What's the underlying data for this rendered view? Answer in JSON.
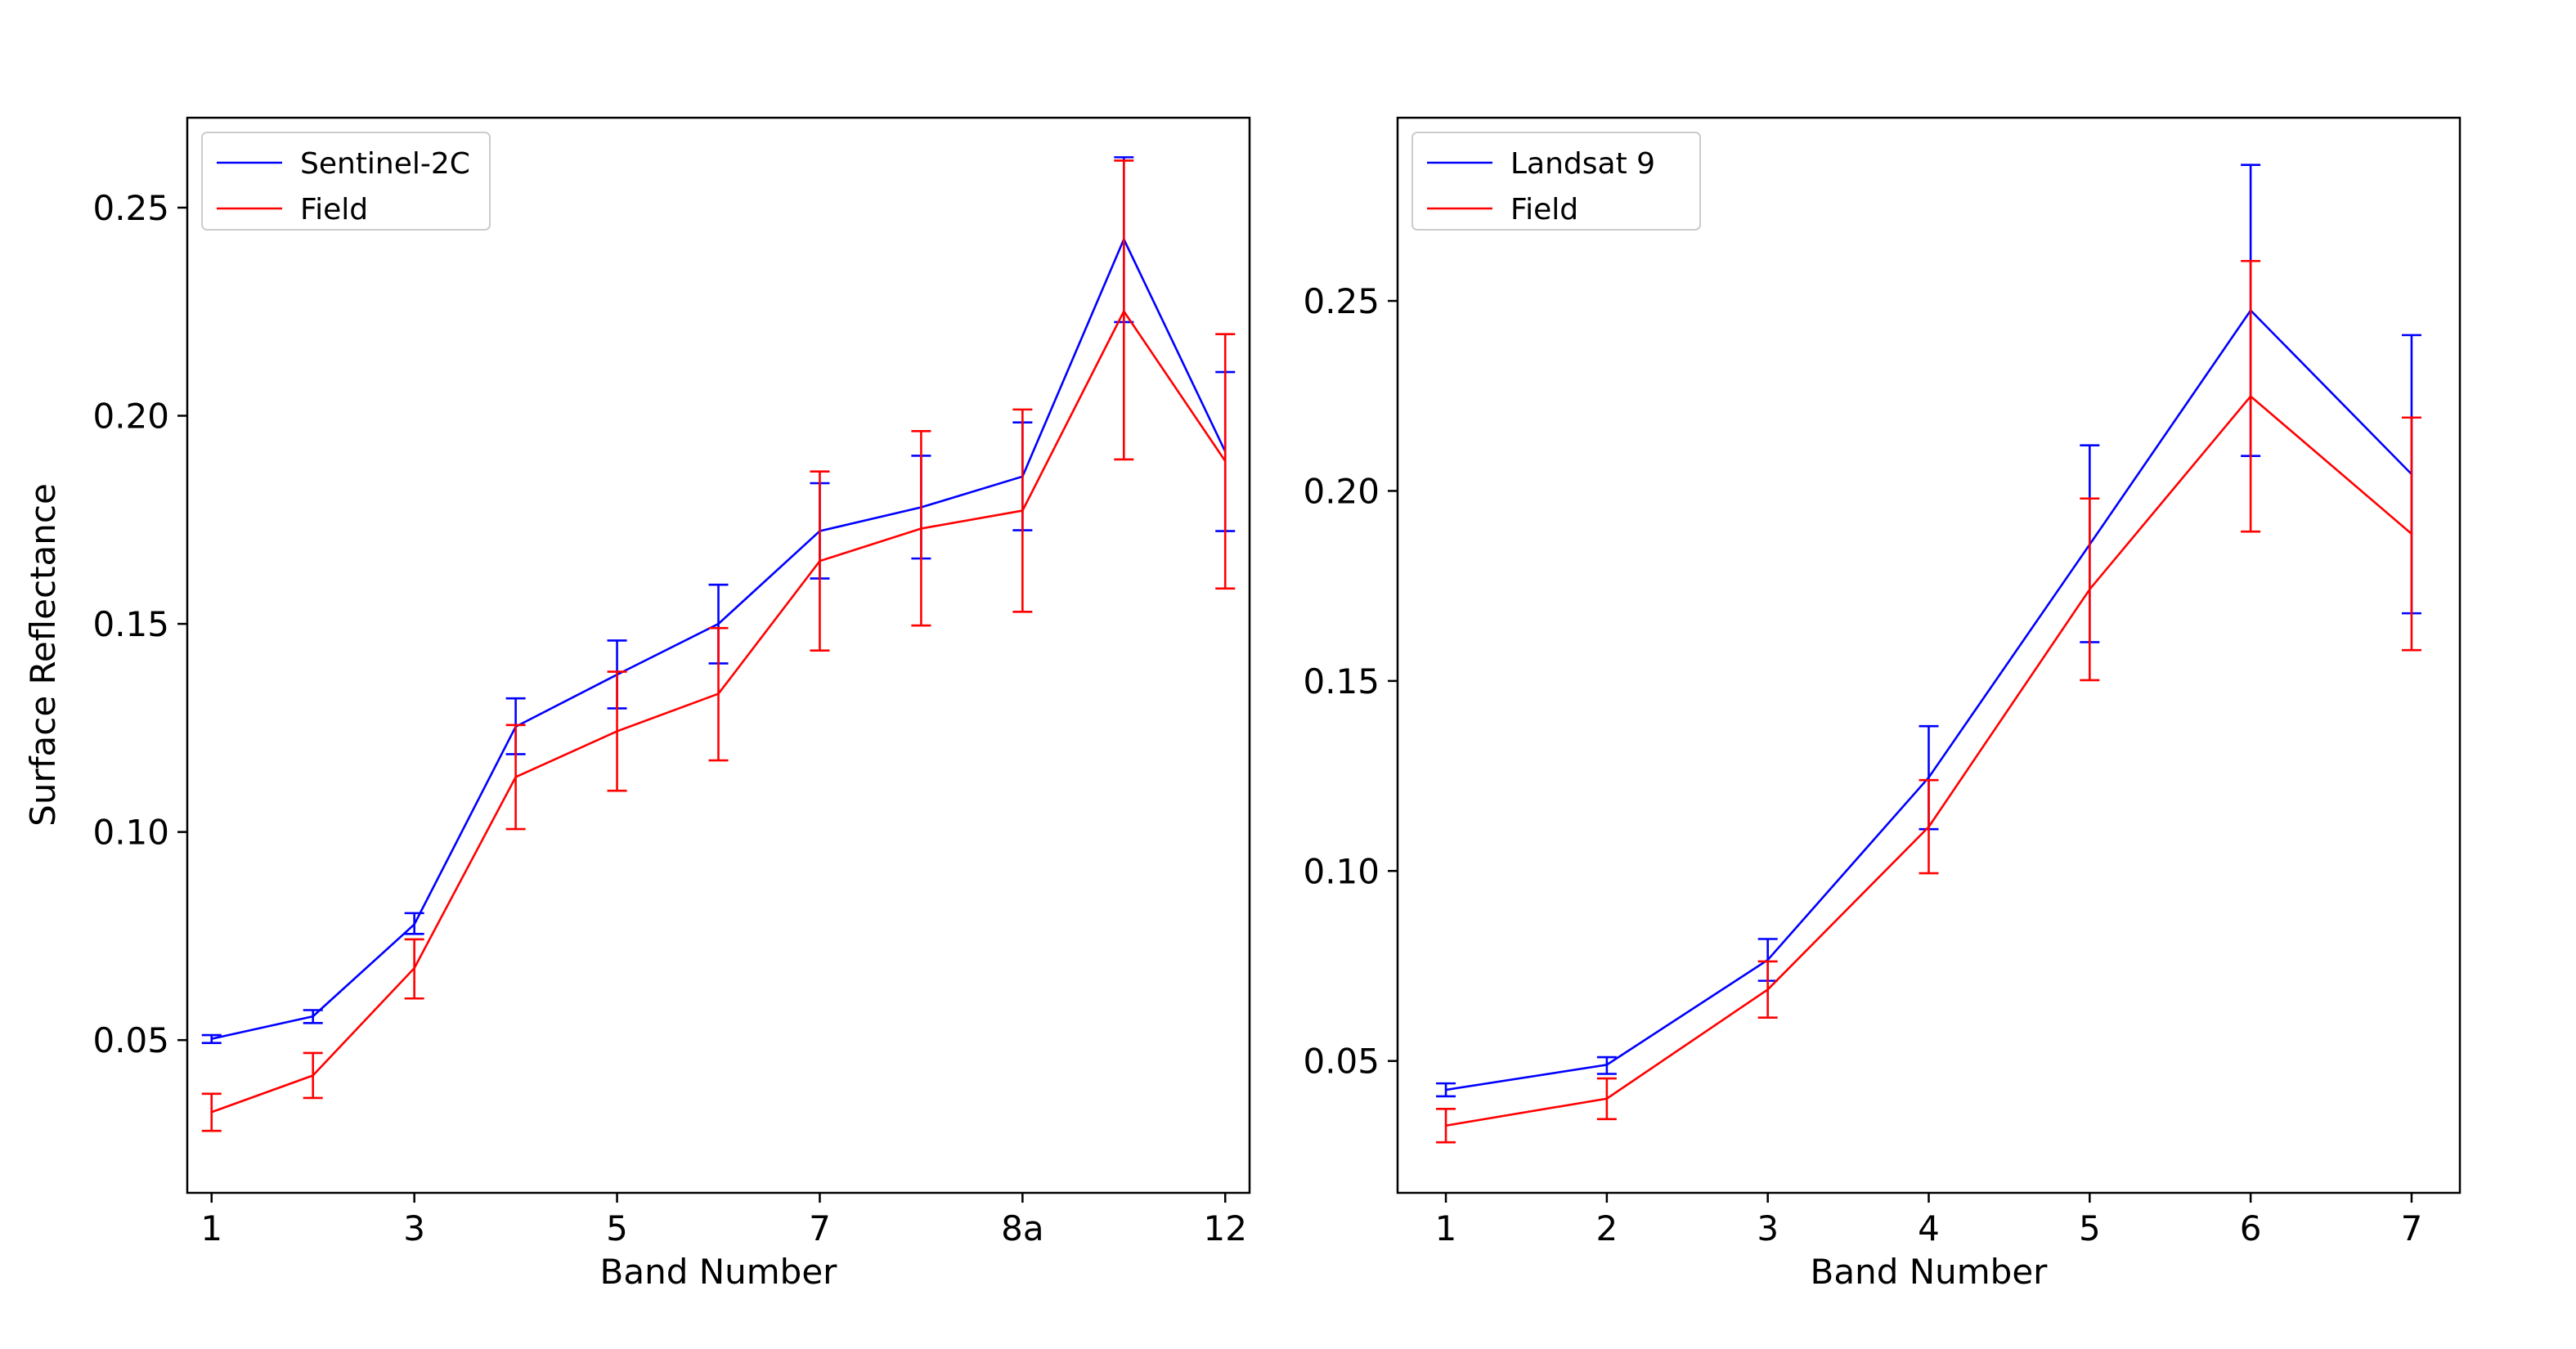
{
  "chart_data": [
    {
      "type": "line",
      "title": "",
      "xlabel": "Band Number",
      "ylabel": "Surface Reflectance",
      "x_tick_labels": [
        "1",
        "3",
        "5",
        "7",
        "8a",
        "12"
      ],
      "y_ticks": [
        0.05,
        0.1,
        0.15,
        0.2,
        0.25
      ],
      "y_tick_labels": [
        "0.05",
        "0.10",
        "0.15",
        "0.20",
        "0.25"
      ],
      "ylim": [
        0.0133,
        0.2716
      ],
      "xlim": [
        0.76,
        11.24
      ],
      "legend": "top-left",
      "x": [
        1,
        2,
        3,
        4,
        5,
        6,
        7,
        8,
        9,
        10,
        11
      ],
      "series": [
        {
          "name": "Sentinel-2C",
          "color": "#0000ff",
          "values": [
            0.0503,
            0.0557,
            0.0778,
            0.1253,
            0.1378,
            0.15,
            0.1723,
            0.178,
            0.1854,
            0.2424,
            0.1914
          ],
          "err_low": [
            0.0493,
            0.0541,
            0.0755,
            0.1187,
            0.1297,
            0.1405,
            0.1609,
            0.1657,
            0.1725,
            0.2225,
            0.1723
          ],
          "err_high": [
            0.0512,
            0.0572,
            0.0805,
            0.1321,
            0.146,
            0.1594,
            0.1838,
            0.1904,
            0.1984,
            0.2621,
            0.2105
          ]
        },
        {
          "name": "Field",
          "color": "#ff0000",
          "values": [
            0.0327,
            0.0415,
            0.0673,
            0.1132,
            0.1242,
            0.1332,
            0.1651,
            0.1729,
            0.1772,
            0.2251,
            0.1891
          ],
          "err_low": [
            0.0282,
            0.0361,
            0.06,
            0.1007,
            0.1099,
            0.1172,
            0.1436,
            0.1496,
            0.1529,
            0.1895,
            0.1585
          ],
          "err_high": [
            0.0371,
            0.0469,
            0.0742,
            0.1257,
            0.1385,
            0.149,
            0.1866,
            0.1963,
            0.2015,
            0.2613,
            0.2196
          ]
        }
      ]
    },
    {
      "type": "line",
      "title": "",
      "xlabel": "Band Number",
      "ylabel": "",
      "x_tick_labels": [
        "1",
        "2",
        "3",
        "4",
        "5",
        "6",
        "7"
      ],
      "y_ticks": [
        0.05,
        0.1,
        0.15,
        0.2,
        0.25
      ],
      "y_tick_labels": [
        "0.05",
        "0.10",
        "0.15",
        "0.20",
        "0.25"
      ],
      "ylim": [
        0.0153,
        0.2982
      ],
      "xlim": [
        0.7,
        7.3
      ],
      "legend": "top-left",
      "x": [
        1,
        2,
        3,
        4,
        5,
        6,
        7
      ],
      "series": [
        {
          "name": "Landsat 9",
          "color": "#0000ff",
          "values": [
            0.0424,
            0.049,
            0.0766,
            0.1246,
            0.1859,
            0.2475,
            0.2044
          ],
          "err_low": [
            0.0407,
            0.0466,
            0.0711,
            0.111,
            0.1602,
            0.2092,
            0.1678
          ],
          "err_high": [
            0.0441,
            0.051,
            0.0821,
            0.1381,
            0.212,
            0.2858,
            0.241
          ]
        },
        {
          "name": "Field",
          "color": "#ff0000",
          "values": [
            0.033,
            0.0401,
            0.0688,
            0.1116,
            0.1741,
            0.2249,
            0.1887
          ],
          "err_low": [
            0.0286,
            0.0347,
            0.0614,
            0.0994,
            0.1502,
            0.1893,
            0.1581
          ],
          "err_high": [
            0.0374,
            0.0454,
            0.0762,
            0.1239,
            0.198,
            0.2605,
            0.2193
          ]
        }
      ]
    }
  ]
}
